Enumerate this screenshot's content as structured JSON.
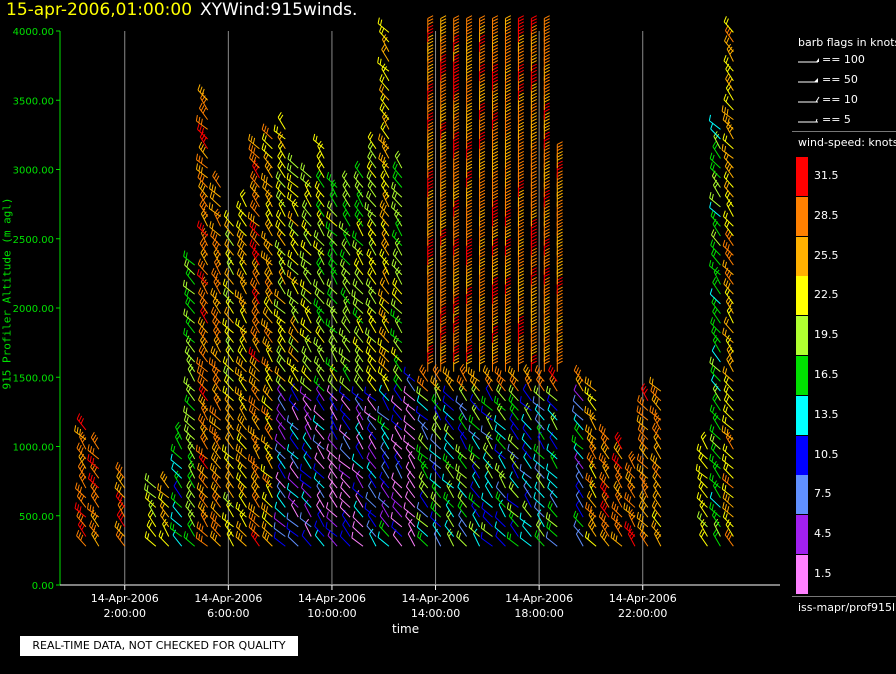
{
  "header": {
    "timestamp": "15-apr-2006,01:00:00",
    "source": "XYWind:915winds."
  },
  "footer": {
    "quality_note": "REAL-TIME DATA, NOT CHECKED FOR QUALITY"
  },
  "legend": {
    "flags_title": "barb flags in knots",
    "flags": [
      "== 100",
      "== 50",
      "== 10",
      "== 5"
    ],
    "speed_title": "wind-speed: knots",
    "speed_bins": [
      {
        "label": "31.5",
        "color": "#ff0000"
      },
      {
        "label": "28.5",
        "color": "#ff8000"
      },
      {
        "label": "25.5",
        "color": "#ffb000"
      },
      {
        "label": "22.5",
        "color": "#ffff00"
      },
      {
        "label": "19.5",
        "color": "#b0ff30"
      },
      {
        "label": "16.5",
        "color": "#00e000"
      },
      {
        "label": "13.5",
        "color": "#00ffff"
      },
      {
        "label": "10.5",
        "color": "#0000ff"
      },
      {
        "label": "7.5",
        "color": "#6090ff"
      },
      {
        "label": "4.5",
        "color": "#a020f0"
      },
      {
        "label": "1.5",
        "color": "#ff80ff"
      }
    ],
    "source_path": "iss-mapr/prof915l"
  },
  "chart_data": {
    "type": "scatter",
    "ylabel": "915 Profiler Altitude (m agl)",
    "xlabel": "time",
    "ylim": [
      0,
      4000
    ],
    "y_ticks": [
      "0.00",
      "500.00",
      "1000.00",
      "1500.00",
      "2000.00",
      "2500.00",
      "3000.00",
      "3500.00",
      "4000.00"
    ],
    "xlim_hours": [
      -0.5,
      27.3
    ],
    "x_ticks": [
      {
        "hour": 2,
        "date": "14-Apr-2006",
        "time": "2:00:00"
      },
      {
        "hour": 6,
        "date": "14-Apr-2006",
        "time": "6:00:00"
      },
      {
        "hour": 10,
        "date": "14-Apr-2006",
        "time": "10:00:00"
      },
      {
        "hour": 14,
        "date": "14-Apr-2006",
        "time": "14:00:00"
      },
      {
        "hour": 18,
        "date": "14-Apr-2006",
        "time": "18:00:00"
      },
      {
        "hour": 22,
        "date": "14-Apr-2006",
        "time": "22:00:00"
      }
    ],
    "grid": "vertical at x ticks",
    "profiles": [
      {
        "hour": 0.5,
        "max_alt": 1150,
        "speed": 31
      },
      {
        "hour": 1.0,
        "max_alt": 1000,
        "speed": 31
      },
      {
        "hour": 2.0,
        "max_alt": 800,
        "speed": 31
      },
      {
        "hour": 3.2,
        "max_alt": 700,
        "speed": 24
      },
      {
        "hour": 3.7,
        "max_alt": 750,
        "speed": 26
      },
      {
        "hour": 4.2,
        "max_alt": 1100,
        "speed": 17
      },
      {
        "hour": 4.7,
        "max_alt": 2350,
        "speed": 21
      },
      {
        "hour": 5.2,
        "max_alt": 3550,
        "speed": 31
      },
      {
        "hour": 5.7,
        "max_alt": 2900,
        "speed": 30
      },
      {
        "hour": 6.2,
        "max_alt": 2650,
        "speed": 25
      },
      {
        "hour": 6.7,
        "max_alt": 2750,
        "speed": 27
      },
      {
        "hour": 7.2,
        "max_alt": 3150,
        "speed": 31
      },
      {
        "hour": 7.7,
        "max_alt": 3250,
        "speed": 28
      },
      {
        "hour": 8.2,
        "max_alt": 3350,
        "speed": 25
      },
      {
        "hour": 8.7,
        "max_alt": 3050,
        "speed": 25
      },
      {
        "hour": 9.2,
        "max_alt": 3000,
        "speed": 24
      },
      {
        "hour": 9.7,
        "max_alt": 3200,
        "speed": 23
      },
      {
        "hour": 10.2,
        "max_alt": 2900,
        "speed": 22
      },
      {
        "hour": 10.7,
        "max_alt": 2900,
        "speed": 21
      },
      {
        "hour": 11.2,
        "max_alt": 3000,
        "speed": 23
      },
      {
        "hour": 11.7,
        "max_alt": 3150,
        "speed": 24
      },
      {
        "hour": 12.2,
        "max_alt": 4000,
        "speed": 27
      },
      {
        "hour": 12.7,
        "max_alt": 3050,
        "speed": 22
      },
      {
        "hour": 13.2,
        "max_alt": 1500,
        "speed": 12
      },
      {
        "hour": 13.7,
        "max_alt": 4000,
        "speed": 31
      },
      {
        "hour": 14.2,
        "max_alt": 4000,
        "speed": 31
      },
      {
        "hour": 14.7,
        "max_alt": 4000,
        "speed": 31
      },
      {
        "hour": 15.2,
        "max_alt": 4000,
        "speed": 31
      },
      {
        "hour": 15.7,
        "max_alt": 4000,
        "speed": 31
      },
      {
        "hour": 16.2,
        "max_alt": 4000,
        "speed": 31
      },
      {
        "hour": 16.7,
        "max_alt": 4000,
        "speed": 31
      },
      {
        "hour": 17.2,
        "max_alt": 4000,
        "speed": 31
      },
      {
        "hour": 17.7,
        "max_alt": 4000,
        "speed": 31
      },
      {
        "hour": 18.2,
        "max_alt": 4000,
        "speed": 31
      },
      {
        "hour": 18.7,
        "max_alt": 3100,
        "speed": 31
      },
      {
        "hour": 19.7,
        "max_alt": 1500,
        "speed": 29
      },
      {
        "hour": 20.2,
        "max_alt": 1450,
        "speed": 28
      },
      {
        "hour": 20.7,
        "max_alt": 1100,
        "speed": 31
      },
      {
        "hour": 21.2,
        "max_alt": 1000,
        "speed": 31
      },
      {
        "hour": 21.7,
        "max_alt": 900,
        "speed": 31
      },
      {
        "hour": 22.2,
        "max_alt": 1350,
        "speed": 31
      },
      {
        "hour": 22.7,
        "max_alt": 1450,
        "speed": 29
      },
      {
        "hour": 24.5,
        "max_alt": 1000,
        "speed": 24
      },
      {
        "hour": 25.0,
        "max_alt": 3300,
        "speed": 20
      },
      {
        "hour": 25.5,
        "max_alt": 4000,
        "speed": 28
      }
    ]
  }
}
